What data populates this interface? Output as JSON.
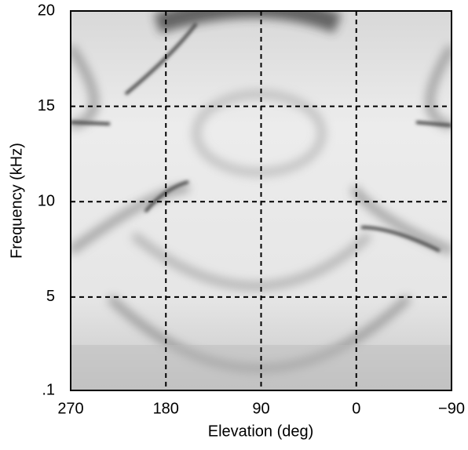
{
  "chart_data": {
    "type": "heatmap",
    "x_label": "Elevation (deg)",
    "y_label": "Frequency (kHz)",
    "xlim": [
      270,
      -90
    ],
    "xticks": [
      270,
      180,
      90,
      0,
      {
        "value": -90,
        "label": "−90"
      }
    ],
    "ylim": [
      0.1,
      20
    ],
    "yticks": [
      {
        "value": 0.1,
        "label": ".1"
      },
      5,
      10,
      15,
      20
    ],
    "grid": true
  }
}
